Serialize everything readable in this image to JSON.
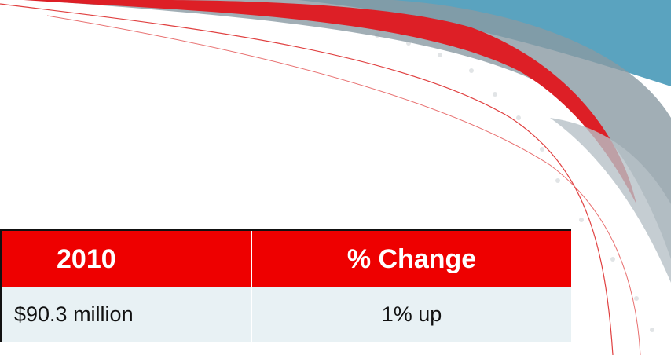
{
  "table": {
    "header": [
      "2010",
      "% Change"
    ],
    "rows": [
      [
        "$90.3 million",
        "1% up"
      ]
    ]
  }
}
